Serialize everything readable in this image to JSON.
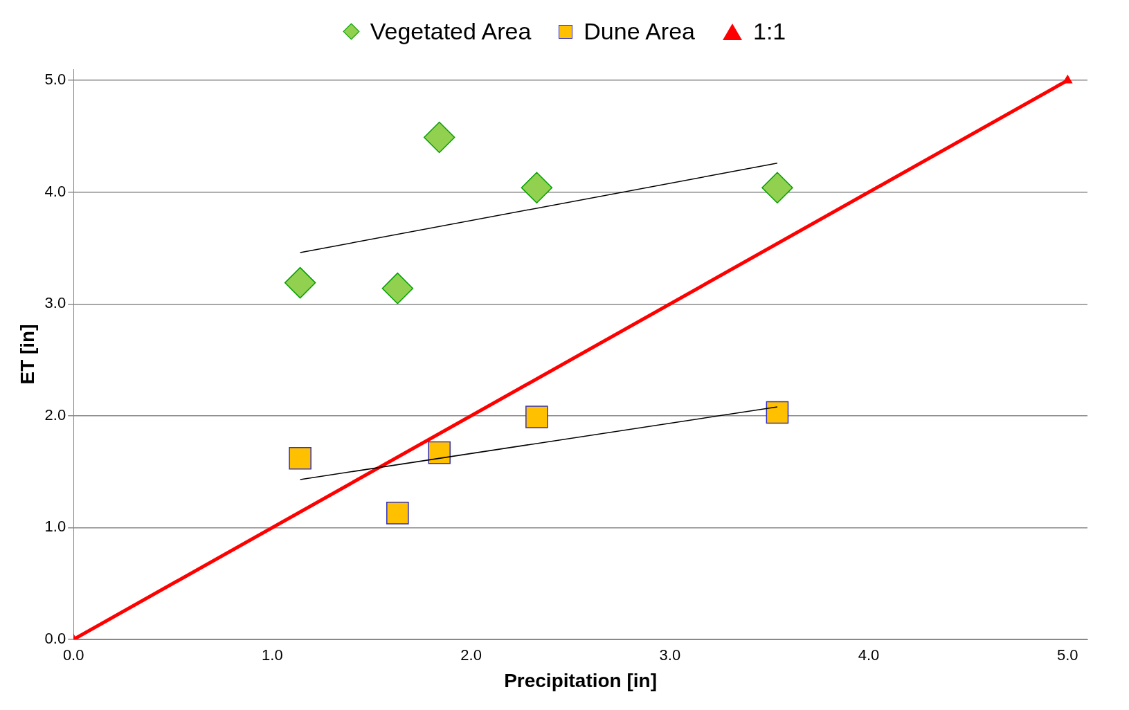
{
  "chart_data": {
    "type": "scatter",
    "xlabel": "Precipitation [in]",
    "ylabel": "ET [in]",
    "xlim": [
      0,
      5.1
    ],
    "xticks": [
      {
        "value": 0,
        "label": "0.0"
      },
      {
        "value": 1,
        "label": "1.0"
      },
      {
        "value": 2,
        "label": "2.0"
      },
      {
        "value": 3,
        "label": "3.0"
      },
      {
        "value": 4,
        "label": "4.0"
      },
      {
        "value": 5,
        "label": "5.0"
      }
    ],
    "ylim": [
      0,
      5.1
    ],
    "yticks": [
      {
        "value": 0,
        "label": "0.0"
      },
      {
        "value": 1,
        "label": "1.0"
      },
      {
        "value": 2,
        "label": "2.0"
      },
      {
        "value": 3,
        "label": "3.0"
      },
      {
        "value": 4,
        "label": "4.0"
      },
      {
        "value": 5,
        "label": "5.0"
      }
    ],
    "grid": "y",
    "legend": "top",
    "series": [
      {
        "name": "Vegetated Area",
        "type": "scatter",
        "marker": "diamond",
        "color": "#92d050",
        "x": [
          1.14,
          1.63,
          1.84,
          2.33,
          3.54
        ],
        "values": [
          3.19,
          3.14,
          4.49,
          4.04,
          4.04
        ]
      },
      {
        "name": "Dune Area",
        "type": "scatter",
        "marker": "square",
        "color": "#ffc000",
        "x": [
          1.14,
          1.63,
          1.84,
          2.33,
          3.54
        ],
        "values": [
          1.62,
          1.13,
          1.67,
          1.99,
          2.03
        ]
      },
      {
        "name": "1:1",
        "type": "line",
        "marker": "triangle",
        "color": "#ff0000",
        "x": [
          0,
          5
        ],
        "values": [
          0,
          5
        ]
      },
      {
        "type": "line",
        "marker": "none",
        "color": "#000000",
        "x": [
          1.14,
          3.54
        ],
        "values": [
          3.46,
          4.26
        ]
      },
      {
        "type": "line",
        "marker": "none",
        "color": "#000000",
        "x": [
          1.14,
          3.54
        ],
        "values": [
          1.43,
          2.08
        ]
      }
    ]
  }
}
